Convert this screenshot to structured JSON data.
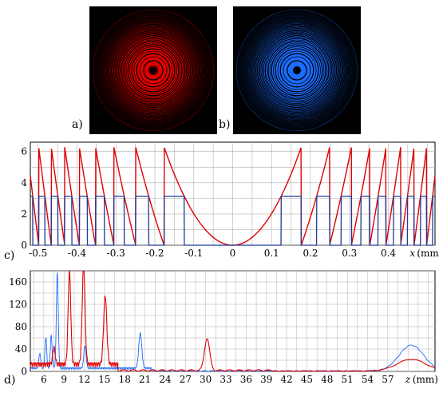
{
  "labels": {
    "a": "a)",
    "b": "b)",
    "c": "c)",
    "d": "d)"
  },
  "colors": {
    "red": "#e00000",
    "blue": "#1c6cff",
    "profile_blue": "#1f3a9a",
    "grid": "#b0b0b0"
  },
  "chart_data": [
    {
      "type": "line",
      "panel": "c",
      "xlabel": "x",
      "xunit": "(mm)",
      "xlim": [
        -0.52,
        0.52
      ],
      "ylim": [
        0,
        6.6
      ],
      "x_ticks": [
        "-0.5",
        "-0.4",
        "-0.3",
        "-0.2",
        "-0.1",
        "0",
        "0.1",
        "0.2",
        "0.3",
        "0.4"
      ],
      "y_ticks": [
        "0",
        "2",
        "4",
        "6"
      ],
      "grid": true,
      "series": [
        {
          "color": "red",
          "description_free": true,
          "kind": "quadratic_phase_mod_2pi",
          "scale_x": 0.1246,
          "max": 6.2832
        },
        {
          "color": "blue",
          "kind": "binary_phase",
          "high": 3.1416,
          "low": 0
        }
      ]
    },
    {
      "type": "line",
      "panel": "d",
      "xlabel": "z",
      "xunit": "(mm)",
      "xlim": [
        4,
        64
      ],
      "ylim": [
        0,
        180
      ],
      "x_ticks": [
        "6",
        "9",
        "12",
        "15",
        "18",
        "21",
        "24",
        "27",
        "30",
        "33",
        "36",
        "39",
        "42",
        "45",
        "48",
        "51",
        "54",
        "57"
      ],
      "y_ticks": [
        "0",
        "40",
        "80",
        "120",
        "160"
      ],
      "grid": true,
      "series": [
        {
          "color": "blue",
          "peaks": [
            [
              5.4,
              27
            ],
            [
              6.3,
              55
            ],
            [
              7.1,
              58
            ],
            [
              8.0,
              170
            ],
            [
              12.1,
              40
            ],
            [
              20.3,
              62
            ],
            [
              60.5,
              46
            ]
          ]
        },
        {
          "color": "red",
          "peaks": [
            [
              7.5,
              30
            ],
            [
              9.8,
              165
            ],
            [
              11.9,
              177
            ],
            [
              15.1,
              122
            ],
            [
              30.2,
              57
            ],
            [
              60.5,
              21
            ]
          ]
        }
      ]
    }
  ]
}
